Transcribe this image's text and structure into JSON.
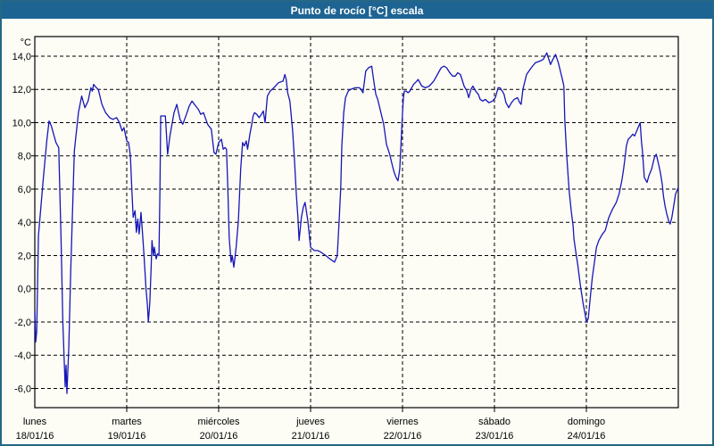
{
  "window": {
    "title": "Punto de rocío [°C] escala"
  },
  "colors": {
    "titlebar_bg": "#1e6493",
    "window_border": "#256784",
    "background": "#fdfdf6",
    "line": "#1616b8",
    "grid": "#000000",
    "text": "#000000"
  },
  "chart_data": {
    "type": "line",
    "title": "Punto de rocío [°C] escala",
    "ylabel": "°C",
    "unit_label": "°C",
    "ylim": [
      -7.2,
      15.2
    ],
    "grid": "dashed",
    "legend": "none",
    "y_ticks": {
      "values": [
        14,
        12,
        10,
        8,
        6,
        4,
        2,
        0,
        -2,
        -4,
        -6
      ],
      "labels": [
        "14,0",
        "12,0",
        "10,0",
        "8,0",
        "6,0",
        "4,0",
        "2,0",
        "0,0",
        "-2,0",
        "-4,0",
        "-6,0"
      ]
    },
    "x_days": [
      {
        "name": "lunes",
        "date": "18/01/16"
      },
      {
        "name": "martes",
        "date": "19/01/16"
      },
      {
        "name": "miércoles",
        "date": "20/01/16"
      },
      {
        "name": "jueves",
        "date": "21/01/16"
      },
      {
        "name": "viernes",
        "date": "22/01/16"
      },
      {
        "name": "sábado",
        "date": "23/01/16"
      },
      {
        "name": "domingo",
        "date": "24/01/16"
      }
    ],
    "x_unit": "days since lunes 18/01/16 00:00",
    "series": [
      {
        "name": "Punto de rocío",
        "color": "#1616b8",
        "points": [
          [
            0,
            -1.4
          ],
          [
            0.01,
            -3.2
          ],
          [
            0.02,
            -2.6
          ],
          [
            0.04,
            3.2
          ],
          [
            0.09,
            6.5
          ],
          [
            0.13,
            8.9
          ],
          [
            0.155,
            10.1
          ],
          [
            0.18,
            9.8
          ],
          [
            0.23,
            8.8
          ],
          [
            0.26,
            8.5
          ],
          [
            0.285,
            3.0
          ],
          [
            0.305,
            -2.0
          ],
          [
            0.33,
            -5.9
          ],
          [
            0.34,
            -4.6
          ],
          [
            0.35,
            -6.3
          ],
          [
            0.37,
            -3.5
          ],
          [
            0.39,
            1.0
          ],
          [
            0.43,
            8.3
          ],
          [
            0.475,
            10.6
          ],
          [
            0.51,
            11.6
          ],
          [
            0.545,
            10.9
          ],
          [
            0.58,
            11.3
          ],
          [
            0.61,
            12.1
          ],
          [
            0.625,
            11.9
          ],
          [
            0.64,
            12.3
          ],
          [
            0.67,
            12.1
          ],
          [
            0.69,
            12.0
          ],
          [
            0.73,
            11.1
          ],
          [
            0.77,
            10.6
          ],
          [
            0.815,
            10.3
          ],
          [
            0.85,
            10.2
          ],
          [
            0.89,
            10.3
          ],
          [
            0.92,
            10.0
          ],
          [
            0.95,
            9.5
          ],
          [
            0.97,
            9.7
          ],
          [
            1.0,
            8.9
          ],
          [
            1.02,
            8.8
          ],
          [
            1.04,
            8.0
          ],
          [
            1.055,
            6.0
          ],
          [
            1.07,
            4.3
          ],
          [
            1.09,
            4.7
          ],
          [
            1.105,
            3.4
          ],
          [
            1.12,
            4.2
          ],
          [
            1.135,
            3.3
          ],
          [
            1.155,
            4.6
          ],
          [
            1.175,
            3.1
          ],
          [
            1.19,
            1.8
          ],
          [
            1.21,
            0.0
          ],
          [
            1.225,
            -1.0
          ],
          [
            1.235,
            -2.0
          ],
          [
            1.25,
            -0.9
          ],
          [
            1.265,
            1.2
          ],
          [
            1.275,
            2.9
          ],
          [
            1.29,
            2.0
          ],
          [
            1.3,
            2.5
          ],
          [
            1.32,
            1.8
          ],
          [
            1.335,
            2.1
          ],
          [
            1.35,
            2.0
          ],
          [
            1.36,
            5.5
          ],
          [
            1.37,
            10.4
          ],
          [
            1.42,
            10.4
          ],
          [
            1.445,
            8.1
          ],
          [
            1.47,
            9.2
          ],
          [
            1.515,
            10.6
          ],
          [
            1.545,
            11.1
          ],
          [
            1.58,
            10.2
          ],
          [
            1.61,
            9.9
          ],
          [
            1.65,
            10.5
          ],
          [
            1.68,
            11.0
          ],
          [
            1.71,
            11.3
          ],
          [
            1.75,
            11.0
          ],
          [
            1.78,
            10.8
          ],
          [
            1.805,
            10.5
          ],
          [
            1.835,
            10.6
          ],
          [
            1.88,
            9.9
          ],
          [
            1.92,
            9.6
          ],
          [
            1.95,
            8.2
          ],
          [
            1.97,
            8.1
          ],
          [
            2.0,
            8.8
          ],
          [
            2.03,
            9.0
          ],
          [
            2.05,
            8.4
          ],
          [
            2.07,
            8.5
          ],
          [
            2.085,
            8.4
          ],
          [
            2.1,
            6.0
          ],
          [
            2.115,
            3.1
          ],
          [
            2.135,
            1.6
          ],
          [
            2.148,
            2.0
          ],
          [
            2.165,
            1.3
          ],
          [
            2.19,
            2.5
          ],
          [
            2.215,
            4.1
          ],
          [
            2.24,
            7.2
          ],
          [
            2.26,
            8.8
          ],
          [
            2.28,
            8.6
          ],
          [
            2.3,
            8.9
          ],
          [
            2.315,
            8.4
          ],
          [
            2.34,
            9.3
          ],
          [
            2.36,
            9.9
          ],
          [
            2.375,
            10.4
          ],
          [
            2.39,
            10.6
          ],
          [
            2.415,
            10.5
          ],
          [
            2.44,
            10.3
          ],
          [
            2.465,
            10.5
          ],
          [
            2.485,
            10.7
          ],
          [
            2.505,
            10.0
          ],
          [
            2.53,
            11.6
          ],
          [
            2.56,
            11.9
          ],
          [
            2.6,
            12.1
          ],
          [
            2.65,
            12.4
          ],
          [
            2.7,
            12.5
          ],
          [
            2.72,
            12.9
          ],
          [
            2.735,
            12.6
          ],
          [
            2.75,
            11.8
          ],
          [
            2.775,
            11.3
          ],
          [
            2.805,
            9.5
          ],
          [
            2.825,
            7.7
          ],
          [
            2.845,
            5.7
          ],
          [
            2.862,
            4.3
          ],
          [
            2.875,
            2.9
          ],
          [
            2.9,
            4.3
          ],
          [
            2.92,
            4.9
          ],
          [
            2.94,
            5.2
          ],
          [
            2.97,
            4.1
          ],
          [
            3.0,
            2.5
          ],
          [
            3.04,
            2.3
          ],
          [
            3.08,
            2.3
          ],
          [
            3.115,
            2.2
          ],
          [
            3.165,
            2.0
          ],
          [
            3.21,
            1.8
          ],
          [
            3.26,
            1.6
          ],
          [
            3.29,
            2.0
          ],
          [
            3.31,
            4.0
          ],
          [
            3.328,
            6.1
          ],
          [
            3.34,
            8.6
          ],
          [
            3.36,
            10.6
          ],
          [
            3.38,
            11.5
          ],
          [
            3.41,
            11.9
          ],
          [
            3.435,
            12.0
          ],
          [
            3.485,
            12.1
          ],
          [
            3.53,
            12.1
          ],
          [
            3.55,
            12.0
          ],
          [
            3.57,
            11.8
          ],
          [
            3.6,
            13.1
          ],
          [
            3.63,
            13.3
          ],
          [
            3.665,
            13.4
          ],
          [
            3.69,
            12.4
          ],
          [
            3.71,
            11.7
          ],
          [
            3.73,
            11.4
          ],
          [
            3.765,
            10.6
          ],
          [
            3.795,
            9.9
          ],
          [
            3.825,
            8.7
          ],
          [
            3.86,
            8.1
          ],
          [
            3.89,
            7.4
          ],
          [
            3.91,
            7.0
          ],
          [
            3.93,
            6.7
          ],
          [
            3.95,
            6.5
          ],
          [
            3.97,
            7.2
          ],
          [
            3.99,
            9.5
          ],
          [
            4.0,
            10.6
          ],
          [
            4.01,
            11.5
          ],
          [
            4.02,
            11.9
          ],
          [
            4.04,
            11.9
          ],
          [
            4.06,
            11.8
          ],
          [
            4.08,
            11.9
          ],
          [
            4.12,
            12.3
          ],
          [
            4.155,
            12.5
          ],
          [
            4.17,
            12.6
          ],
          [
            4.21,
            12.2
          ],
          [
            4.25,
            12.1
          ],
          [
            4.29,
            12.2
          ],
          [
            4.34,
            12.5
          ],
          [
            4.38,
            12.9
          ],
          [
            4.42,
            13.3
          ],
          [
            4.45,
            13.4
          ],
          [
            4.48,
            13.3
          ],
          [
            4.515,
            13.0
          ],
          [
            4.545,
            12.8
          ],
          [
            4.575,
            12.8
          ],
          [
            4.6,
            13.0
          ],
          [
            4.63,
            12.9
          ],
          [
            4.67,
            12.2
          ],
          [
            4.7,
            11.9
          ],
          [
            4.72,
            11.5
          ],
          [
            4.745,
            12.0
          ],
          [
            4.765,
            12.2
          ],
          [
            4.795,
            11.9
          ],
          [
            4.825,
            11.7
          ],
          [
            4.845,
            11.4
          ],
          [
            4.875,
            11.3
          ],
          [
            4.9,
            11.4
          ],
          [
            4.94,
            11.2
          ],
          [
            4.98,
            11.3
          ],
          [
            5.01,
            11.5
          ],
          [
            5.04,
            12.1
          ],
          [
            5.06,
            12.1
          ],
          [
            5.085,
            11.9
          ],
          [
            5.105,
            11.7
          ],
          [
            5.125,
            11.2
          ],
          [
            5.155,
            10.9
          ],
          [
            5.185,
            11.2
          ],
          [
            5.215,
            11.4
          ],
          [
            5.25,
            11.5
          ],
          [
            5.275,
            11.2
          ],
          [
            5.29,
            11.1
          ],
          [
            5.31,
            12.0
          ],
          [
            5.35,
            12.9
          ],
          [
            5.4,
            13.3
          ],
          [
            5.445,
            13.6
          ],
          [
            5.49,
            13.7
          ],
          [
            5.53,
            13.8
          ],
          [
            5.57,
            14.2
          ],
          [
            5.61,
            13.5
          ],
          [
            5.635,
            13.8
          ],
          [
            5.665,
            14.1
          ],
          [
            5.695,
            13.6
          ],
          [
            5.735,
            12.7
          ],
          [
            5.755,
            12.2
          ],
          [
            5.765,
            10.2
          ],
          [
            5.785,
            8.1
          ],
          [
            5.805,
            6.5
          ],
          [
            5.815,
            5.8
          ],
          [
            5.835,
            4.7
          ],
          [
            5.855,
            3.8
          ],
          [
            5.865,
            3.0
          ],
          [
            5.885,
            2.2
          ],
          [
            5.905,
            1.5
          ],
          [
            5.935,
            0.2
          ],
          [
            5.965,
            -0.9
          ],
          [
            5.985,
            -1.5
          ],
          [
            6.0,
            -2.0
          ],
          [
            6.02,
            -1.8
          ],
          [
            6.045,
            -0.4
          ],
          [
            6.065,
            0.7
          ],
          [
            6.085,
            1.5
          ],
          [
            6.11,
            2.5
          ],
          [
            6.135,
            2.9
          ],
          [
            6.175,
            3.3
          ],
          [
            6.205,
            3.5
          ],
          [
            6.245,
            4.3
          ],
          [
            6.285,
            4.8
          ],
          [
            6.325,
            5.2
          ],
          [
            6.355,
            5.7
          ],
          [
            6.385,
            6.5
          ],
          [
            6.405,
            7.2
          ],
          [
            6.425,
            8.1
          ],
          [
            6.435,
            8.6
          ],
          [
            6.455,
            9.0
          ],
          [
            6.475,
            9.1
          ],
          [
            6.505,
            9.3
          ],
          [
            6.525,
            9.2
          ],
          [
            6.555,
            9.6
          ],
          [
            6.585,
            10.0
          ],
          [
            6.6,
            8.8
          ],
          [
            6.61,
            8.3
          ],
          [
            6.63,
            6.7
          ],
          [
            6.66,
            6.4
          ],
          [
            6.68,
            6.8
          ],
          [
            6.71,
            7.2
          ],
          [
            6.74,
            7.9
          ],
          [
            6.76,
            8.1
          ],
          [
            6.785,
            7.5
          ],
          [
            6.805,
            7.0
          ],
          [
            6.825,
            6.3
          ],
          [
            6.838,
            5.6
          ],
          [
            6.855,
            5.0
          ],
          [
            6.875,
            4.5
          ],
          [
            6.9,
            4.0
          ],
          [
            6.912,
            3.9
          ],
          [
            6.93,
            4.3
          ],
          [
            6.95,
            5.0
          ],
          [
            6.97,
            5.7
          ],
          [
            7.0,
            6.1
          ]
        ]
      }
    ]
  }
}
